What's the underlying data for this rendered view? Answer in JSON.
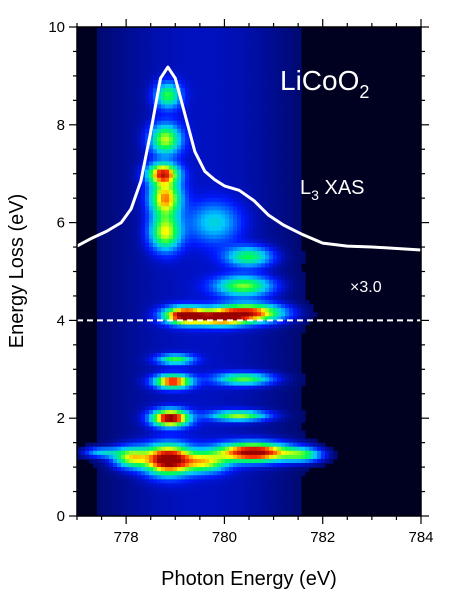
{
  "chart_data": {
    "type": "heatmap",
    "title": "",
    "xlabel": "Photon Energy (eV)",
    "ylabel": "Energy Loss (eV)",
    "xlim": [
      777,
      784
    ],
    "ylim": [
      0,
      10
    ],
    "x_ticks": [
      778,
      780,
      782,
      784
    ],
    "y_ticks": [
      0,
      2,
      4,
      6,
      8,
      10
    ],
    "x_minor_step": 0.5,
    "y_minor_step": 0.5,
    "grid": false,
    "colormap": [
      "#000020",
      "#0018ff",
      "#00c8ff",
      "#00ff50",
      "#ffff00",
      "#ff3000",
      "#990000"
    ],
    "sample_label": {
      "base": "LiCoO",
      "subscript": "2"
    },
    "xas_label": {
      "prefix": "L",
      "subscript": "3",
      "suffix": " XAS"
    },
    "scale_annotation": "×3.0",
    "scale_boundary_energy_loss": 4.0,
    "intensity_features": [
      {
        "photon_energy": 778.85,
        "energy_loss": 1.15,
        "intensity": 1.0,
        "width_x": 0.45,
        "width_y": 0.28
      },
      {
        "photon_energy": 780.6,
        "energy_loss": 1.3,
        "intensity": 0.96,
        "width_x": 0.7,
        "width_y": 0.18
      },
      {
        "photon_energy": 778.1,
        "energy_loss": 1.2,
        "intensity": 0.55,
        "width_x": 0.35,
        "width_y": 0.2
      },
      {
        "photon_energy": 779.6,
        "energy_loss": 1.1,
        "intensity": 0.5,
        "width_x": 0.45,
        "width_y": 0.2
      },
      {
        "photon_energy": 781.6,
        "energy_loss": 1.25,
        "intensity": 0.4,
        "width_x": 0.4,
        "width_y": 0.14
      },
      {
        "photon_energy": 777.5,
        "energy_loss": 1.3,
        "intensity": 0.28,
        "width_x": 0.35,
        "width_y": 0.1
      },
      {
        "photon_energy": 778.9,
        "energy_loss": 2.0,
        "intensity": 0.95,
        "width_x": 0.35,
        "width_y": 0.16
      },
      {
        "photon_energy": 780.3,
        "energy_loss": 2.05,
        "intensity": 0.5,
        "width_x": 0.55,
        "width_y": 0.1
      },
      {
        "photon_energy": 778.95,
        "energy_loss": 2.75,
        "intensity": 0.8,
        "width_x": 0.35,
        "width_y": 0.13
      },
      {
        "photon_energy": 780.4,
        "energy_loss": 2.8,
        "intensity": 0.45,
        "width_x": 0.55,
        "width_y": 0.12
      },
      {
        "photon_energy": 779.0,
        "energy_loss": 3.2,
        "intensity": 0.42,
        "width_x": 0.35,
        "width_y": 0.1
      },
      {
        "photon_energy": 779.2,
        "energy_loss": 4.1,
        "intensity": 0.98,
        "width_x": 0.4,
        "width_y": 0.16
      },
      {
        "photon_energy": 780.5,
        "energy_loss": 4.15,
        "intensity": 0.78,
        "width_x": 0.65,
        "width_y": 0.18
      },
      {
        "photon_energy": 779.9,
        "energy_loss": 4.05,
        "intensity": 0.7,
        "width_x": 0.5,
        "width_y": 0.15
      },
      {
        "photon_energy": 780.4,
        "energy_loss": 4.7,
        "intensity": 0.48,
        "width_x": 0.55,
        "width_y": 0.2
      },
      {
        "photon_energy": 780.5,
        "energy_loss": 5.3,
        "intensity": 0.4,
        "width_x": 0.45,
        "width_y": 0.2
      },
      {
        "photon_energy": 778.8,
        "energy_loss": 5.8,
        "intensity": 0.55,
        "width_x": 0.3,
        "width_y": 0.35
      },
      {
        "photon_energy": 778.8,
        "energy_loss": 6.5,
        "intensity": 0.66,
        "width_x": 0.3,
        "width_y": 0.35
      },
      {
        "photon_energy": 778.75,
        "energy_loss": 7.0,
        "intensity": 0.75,
        "width_x": 0.3,
        "width_y": 0.2
      },
      {
        "photon_energy": 778.8,
        "energy_loss": 7.7,
        "intensity": 0.52,
        "width_x": 0.3,
        "width_y": 0.3
      },
      {
        "photon_energy": 778.85,
        "energy_loss": 8.6,
        "intensity": 0.42,
        "width_x": 0.25,
        "width_y": 0.25
      },
      {
        "photon_energy": 779.8,
        "energy_loss": 6.0,
        "intensity": 0.25,
        "width_x": 0.5,
        "width_y": 0.4
      }
    ],
    "series": [
      {
        "type": "line",
        "color": "#ffffff",
        "points": [
          [
            777.0,
            5.52
          ],
          [
            777.3,
            5.68
          ],
          [
            777.6,
            5.82
          ],
          [
            777.9,
            6.0
          ],
          [
            778.1,
            6.28
          ],
          [
            778.3,
            6.85
          ],
          [
            778.5,
            7.85
          ],
          [
            778.7,
            8.95
          ],
          [
            778.85,
            9.18
          ],
          [
            779.0,
            8.95
          ],
          [
            779.2,
            8.2
          ],
          [
            779.4,
            7.45
          ],
          [
            779.6,
            7.05
          ],
          [
            779.8,
            6.88
          ],
          [
            780.0,
            6.75
          ],
          [
            780.3,
            6.66
          ],
          [
            780.6,
            6.45
          ],
          [
            780.9,
            6.15
          ],
          [
            781.2,
            5.95
          ],
          [
            781.6,
            5.75
          ],
          [
            782.0,
            5.58
          ],
          [
            782.5,
            5.52
          ],
          [
            783.0,
            5.5
          ],
          [
            784.0,
            5.44
          ]
        ]
      }
    ]
  }
}
